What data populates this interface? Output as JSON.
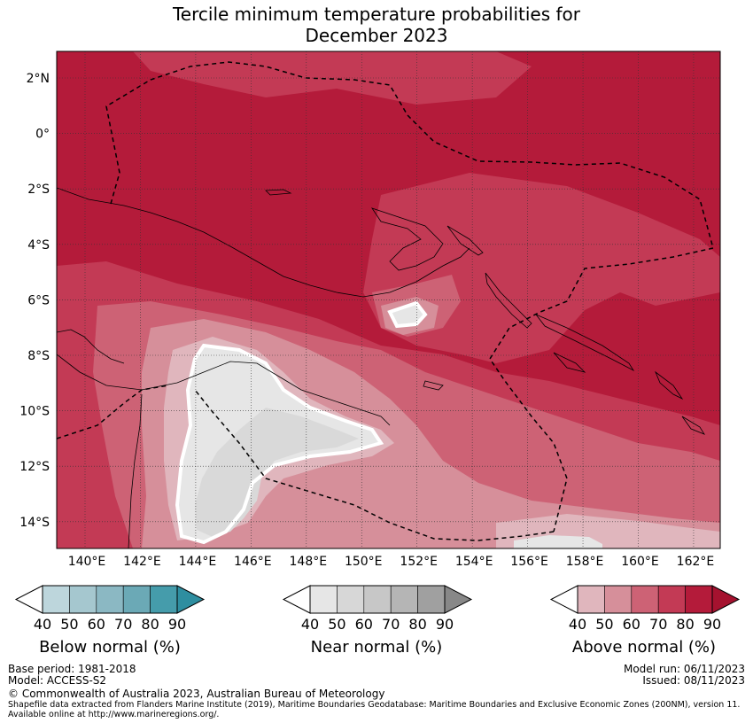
{
  "title_line1": "Tercile minimum temperature probabilities for",
  "title_line2": "December 2023",
  "map": {
    "lon_ticks": [
      "140°E",
      "142°E",
      "144°E",
      "146°E",
      "148°E",
      "150°E",
      "152°E",
      "154°E",
      "156°E",
      "158°E",
      "160°E",
      "162°E"
    ],
    "lat_ticks": [
      "2°N",
      "0°",
      "2°S",
      "4°S",
      "6°S",
      "8°S",
      "10°S",
      "12°S",
      "14°S"
    ],
    "colors": {
      "above_90": "#b41b3a",
      "above_80": "#c33a55",
      "above_70": "#cd6275",
      "above_60": "#d68f9a",
      "above_50": "#e0b6bd",
      "near_60": "#d9d9d9",
      "near_50": "#e6e6e6"
    }
  },
  "colorbars": [
    {
      "label": "Below normal (%)",
      "ticks": [
        "40",
        "50",
        "60",
        "70",
        "80",
        "90"
      ],
      "colors": [
        "#bdd6dc",
        "#a5c7cf",
        "#8bb8c3",
        "#6ba9b6",
        "#459cab",
        "#2e8ea0"
      ]
    },
    {
      "label": "Near normal (%)",
      "ticks": [
        "40",
        "50",
        "60",
        "70",
        "80",
        "90"
      ],
      "colors": [
        "#e6e6e6",
        "#d7d7d7",
        "#c7c7c7",
        "#b5b5b5",
        "#a0a0a0",
        "#888888"
      ]
    },
    {
      "label": "Above normal (%)",
      "ticks": [
        "40",
        "50",
        "60",
        "70",
        "80",
        "90"
      ],
      "colors": [
        "#e0b6bd",
        "#d68f9a",
        "#cd6275",
        "#c33a55",
        "#b41b3a",
        "#a5122f"
      ]
    }
  ],
  "info": {
    "base_period": "Base period: 1981-2018",
    "model": "Model: ACCESS-S2",
    "model_run": "Model run: 06/11/2023",
    "issued": "Issued: 08/11/2023",
    "copyright": "© Commonwealth of Australia 2023, Australian Bureau of Meteorology",
    "shapefile": "Shapefile data extracted from Flanders Marine Institute (2019), Maritime Boundaries Geodatabase: Maritime Boundaries and Exclusive Economic Zones (200NM), version 11.",
    "available": "Available online at http://www.marineregions.org/."
  }
}
